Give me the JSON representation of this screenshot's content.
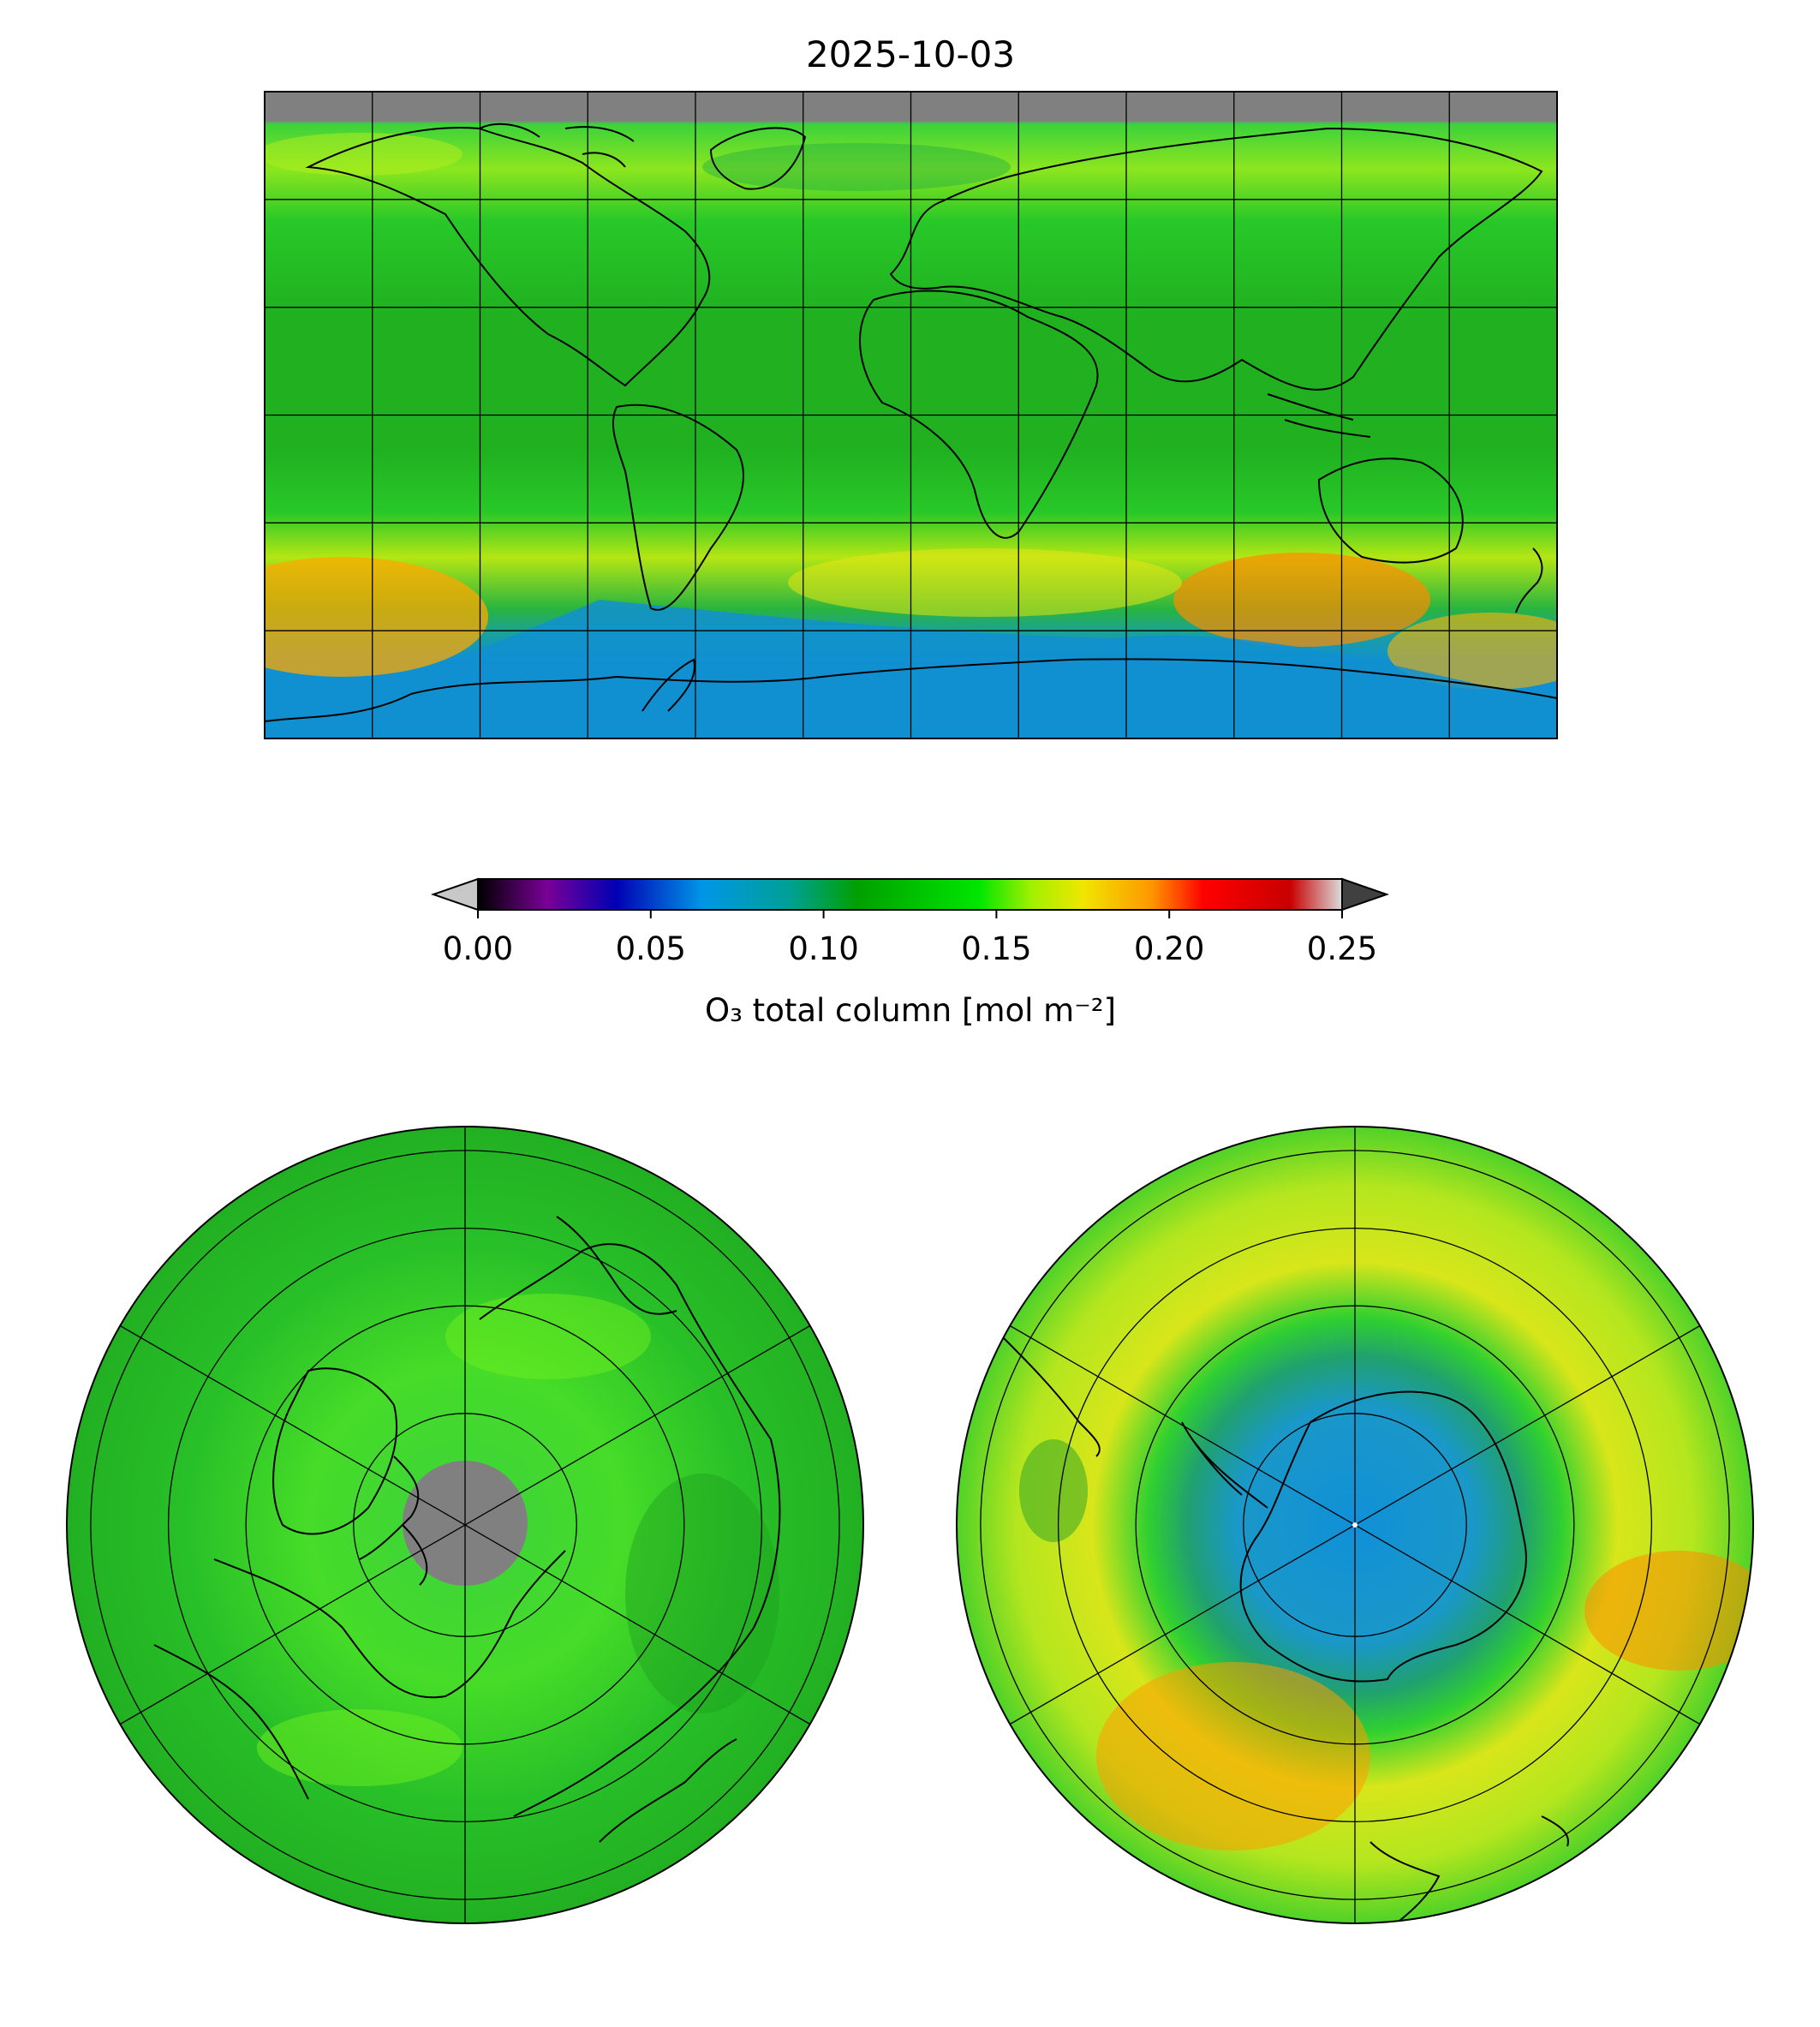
{
  "figure": {
    "title": "2025-10-03"
  },
  "colorbar": {
    "label": "O₃ total column [mol m⁻²]",
    "ticks": [
      "0.00",
      "0.05",
      "0.10",
      "0.15",
      "0.20",
      "0.25"
    ],
    "vmin": 0.0,
    "vmax": 0.25,
    "extend": "both",
    "under_color": "#c8c8c8",
    "over_color": "#404040",
    "stops": [
      {
        "v": 0.0,
        "c": "#000000"
      },
      {
        "v": 0.02,
        "c": "#7a0096"
      },
      {
        "v": 0.04,
        "c": "#0000b4"
      },
      {
        "v": 0.065,
        "c": "#0096e6"
      },
      {
        "v": 0.09,
        "c": "#00a096"
      },
      {
        "v": 0.11,
        "c": "#00a000"
      },
      {
        "v": 0.145,
        "c": "#00e600"
      },
      {
        "v": 0.16,
        "c": "#a0f000"
      },
      {
        "v": 0.175,
        "c": "#f0e600"
      },
      {
        "v": 0.195,
        "c": "#ff9600"
      },
      {
        "v": 0.21,
        "c": "#ff0000"
      },
      {
        "v": 0.235,
        "c": "#c80000"
      },
      {
        "v": 0.25,
        "c": "#dcdcdc"
      }
    ]
  },
  "panels": [
    {
      "name": "global map",
      "projection": "plate-carree",
      "no_data_color": "#808080"
    },
    {
      "name": "northern polar map",
      "projection": "north-polar-stereographic",
      "no_data_color": "#808080"
    },
    {
      "name": "southern polar map",
      "projection": "south-polar-stereographic",
      "no_data_color": "#808080"
    }
  ]
}
